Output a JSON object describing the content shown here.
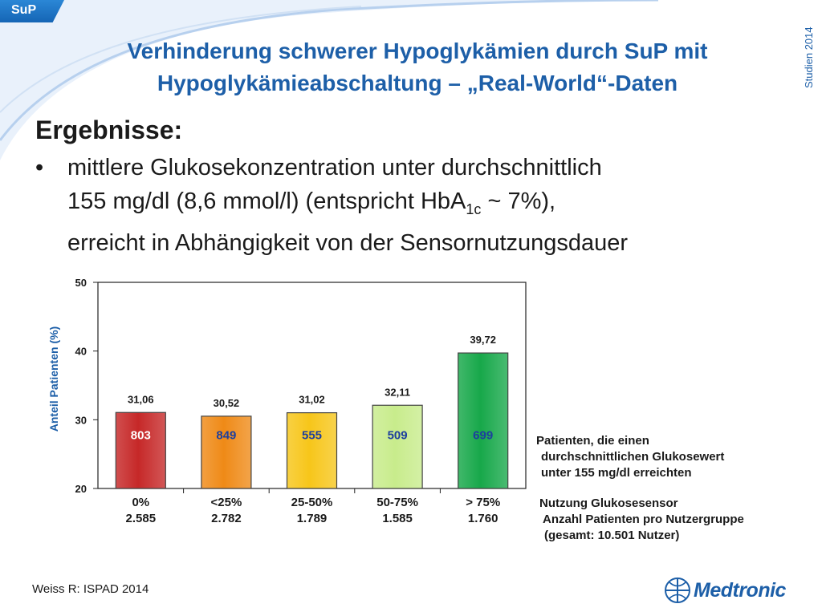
{
  "tag": "SuP",
  "side_label": "Studien 2014",
  "title_line1": "Verhinderung schwerer Hypoglykämien durch SuP mit",
  "title_line2": "Hypoglykämieabschaltung – „Real-World“-Daten",
  "heading": "Ergebnisse:",
  "bullet": {
    "line1": "mittlere Glukosekonzentration unter durchschnittlich",
    "line2_a": "155 mg/dl (8,6 mmol/l) (entspricht HbA",
    "line2_sub": "1c",
    "line2_b": " ~ 7%),",
    "line3": "erreicht in Abhängigkeit von der Sensornutzungsdauer"
  },
  "colors": {
    "brand_blue": "#1d5fa8",
    "bar_red": "#c62828",
    "bar_orange": "#ef8a17",
    "bar_yellow": "#f7c61a",
    "bar_lightgreen": "#c8ec8c",
    "bar_green": "#17a84a"
  },
  "chart_data": {
    "type": "bar",
    "ylabel": "Anteil Patienten (%)",
    "ylim": [
      20,
      50
    ],
    "yticks": [
      "20",
      "30",
      "40",
      "50"
    ],
    "categories": [
      "0%",
      "<25%",
      "25-50%",
      "50-75%",
      "> 75%"
    ],
    "values": [
      31.06,
      30.52,
      31.02,
      32.11,
      39.72
    ],
    "value_labels": [
      "31,06",
      "30,52",
      "31,02",
      "32,11",
      "39,72"
    ],
    "inner_labels": [
      "803",
      "849",
      "555",
      "509",
      "699"
    ],
    "group_sizes": [
      "2.585",
      "2.782",
      "1.789",
      "1.585",
      "1.760"
    ],
    "grid": false
  },
  "notes": {
    "patients_line1": "Patienten, die einen",
    "patients_line2": "durchschnittlichen Glukosewert",
    "patients_line3": "unter 155 mg/dl erreichten",
    "usage": "Nutzung Glukosesensor",
    "group_line1": "Anzahl Patienten pro Nutzergruppe",
    "group_line2": "(gesamt: 10.501 Nutzer)"
  },
  "footer_ref": "Weiss R: ISPAD 2014",
  "logo_text": "Medtronic"
}
